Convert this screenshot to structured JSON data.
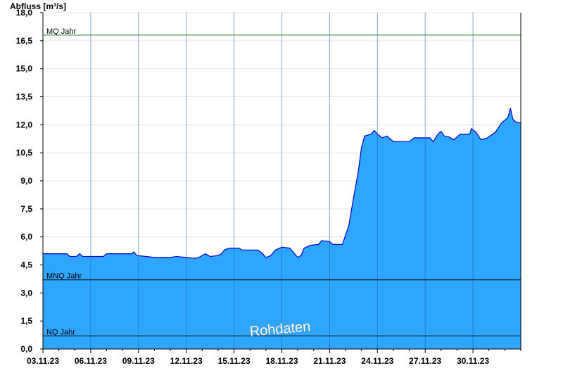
{
  "chart_data": {
    "type": "area",
    "ylabel": "Abfluss [m³/s]",
    "xlabel": "",
    "ylim": [
      0,
      18
    ],
    "y_ticks": [
      "0,0",
      "1,5",
      "3,0",
      "4,5",
      "6,0",
      "7,5",
      "9,0",
      "10,5",
      "12,0",
      "13,5",
      "15,0",
      "16,5",
      "18,0"
    ],
    "y_tick_values": [
      0,
      1.5,
      3,
      4.5,
      6,
      7.5,
      9,
      10.5,
      12,
      13.5,
      15,
      16.5,
      18
    ],
    "x_day_range": [
      0,
      30
    ],
    "x_ticks": [
      {
        "day": 0,
        "label": "03.11.23"
      },
      {
        "day": 3,
        "label": "06.11.23"
      },
      {
        "day": 6,
        "label": "09.11.23"
      },
      {
        "day": 9,
        "label": "12.11.23"
      },
      {
        "day": 12,
        "label": "15.11.23"
      },
      {
        "day": 15,
        "label": "18.11.23"
      },
      {
        "day": 18,
        "label": "21.11.23"
      },
      {
        "day": 21,
        "label": "24.11.23"
      },
      {
        "day": 24,
        "label": "27.11.23"
      },
      {
        "day": 27,
        "label": "30.11.23"
      }
    ],
    "reference_lines": [
      {
        "name": "MQ Jahr",
        "value": 16.8,
        "color": "#2e7d32"
      },
      {
        "name": "MNQ Jahr",
        "value": 3.7,
        "color": "#000000"
      },
      {
        "name": "NQ Jahr",
        "value": 0.7,
        "color": "#000000"
      }
    ],
    "series": [
      {
        "fill_color": "#2ea6ff",
        "line_color": "#0000cc",
        "points": [
          [
            0,
            5.1
          ],
          [
            1.5,
            5.1
          ],
          [
            1.7,
            4.95
          ],
          [
            2.1,
            4.95
          ],
          [
            2.3,
            5.1
          ],
          [
            2.5,
            4.95
          ],
          [
            3.8,
            4.95
          ],
          [
            4.0,
            5.1
          ],
          [
            5.6,
            5.1
          ],
          [
            5.7,
            5.2
          ],
          [
            5.9,
            5.0
          ],
          [
            6.5,
            4.95
          ],
          [
            7.0,
            4.9
          ],
          [
            8.0,
            4.9
          ],
          [
            8.4,
            4.95
          ],
          [
            9.0,
            4.9
          ],
          [
            9.6,
            4.85
          ],
          [
            9.9,
            4.95
          ],
          [
            10.2,
            5.1
          ],
          [
            10.5,
            4.95
          ],
          [
            11.0,
            5.0
          ],
          [
            11.2,
            5.1
          ],
          [
            11.4,
            5.3
          ],
          [
            11.7,
            5.4
          ],
          [
            12.3,
            5.4
          ],
          [
            12.5,
            5.3
          ],
          [
            13.5,
            5.3
          ],
          [
            13.8,
            5.1
          ],
          [
            14.0,
            4.9
          ],
          [
            14.3,
            5.0
          ],
          [
            14.6,
            5.3
          ],
          [
            15.0,
            5.45
          ],
          [
            15.5,
            5.4
          ],
          [
            15.7,
            5.2
          ],
          [
            16.0,
            4.9
          ],
          [
            16.2,
            5.0
          ],
          [
            16.4,
            5.4
          ],
          [
            16.8,
            5.55
          ],
          [
            17.3,
            5.6
          ],
          [
            17.5,
            5.8
          ],
          [
            18.0,
            5.75
          ],
          [
            18.2,
            5.6
          ],
          [
            18.8,
            5.6
          ],
          [
            19.2,
            6.6
          ],
          [
            19.5,
            8.1
          ],
          [
            19.8,
            9.5
          ],
          [
            20.0,
            10.8
          ],
          [
            20.2,
            11.4
          ],
          [
            20.6,
            11.5
          ],
          [
            20.8,
            11.7
          ],
          [
            21.0,
            11.5
          ],
          [
            21.3,
            11.3
          ],
          [
            21.6,
            11.4
          ],
          [
            22.0,
            11.1
          ],
          [
            22.3,
            11.1
          ],
          [
            23.0,
            11.1
          ],
          [
            23.3,
            11.3
          ],
          [
            24.0,
            11.3
          ],
          [
            24.3,
            11.3
          ],
          [
            24.5,
            11.1
          ],
          [
            24.8,
            11.5
          ],
          [
            25.0,
            11.65
          ],
          [
            25.2,
            11.4
          ],
          [
            25.5,
            11.35
          ],
          [
            25.8,
            11.2
          ],
          [
            26.2,
            11.5
          ],
          [
            26.8,
            11.5
          ],
          [
            26.9,
            11.8
          ],
          [
            27.2,
            11.6
          ],
          [
            27.5,
            11.2
          ],
          [
            27.9,
            11.3
          ],
          [
            28.4,
            11.6
          ],
          [
            28.8,
            12.1
          ],
          [
            29.2,
            12.4
          ],
          [
            29.35,
            12.9
          ],
          [
            29.5,
            12.3
          ],
          [
            29.7,
            12.15
          ],
          [
            30.0,
            12.1
          ]
        ]
      }
    ],
    "grid": true,
    "annotations": [
      {
        "text": "Rohdaten"
      }
    ]
  }
}
